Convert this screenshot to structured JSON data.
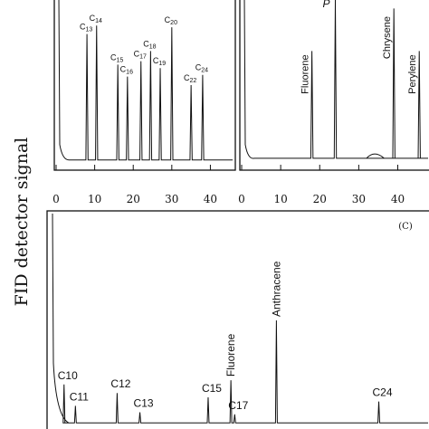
{
  "chart_data": [
    {
      "type": "line",
      "panel": "A",
      "ylabel": "FID detector signal",
      "xlim": [
        0,
        46
      ],
      "x_ticks": [
        0,
        10,
        20,
        30,
        40
      ],
      "x_tick_labels": [
        "0",
        "10",
        "20",
        "30",
        "40"
      ],
      "baseline": 0.06,
      "peaks": [
        {
          "label_main": "C",
          "label_sub": "13",
          "x": 8,
          "y": 0.8
        },
        {
          "label_main": "C",
          "label_sub": "14",
          "x": 10.5,
          "y": 0.85
        },
        {
          "label_main": "C",
          "label_sub": "15",
          "x": 16,
          "y": 0.62
        },
        {
          "label_main": "C",
          "label_sub": "16",
          "x": 18.5,
          "y": 0.55
        },
        {
          "label_main": "C",
          "label_sub": "17",
          "x": 22,
          "y": 0.64
        },
        {
          "label_main": "C",
          "label_sub": "18",
          "x": 24.5,
          "y": 0.7
        },
        {
          "label_main": "C",
          "label_sub": "19",
          "x": 27,
          "y": 0.6
        },
        {
          "label_main": "C",
          "label_sub": "20",
          "x": 30,
          "y": 0.84
        },
        {
          "label_main": "C",
          "label_sub": "22",
          "x": 35,
          "y": 0.5
        },
        {
          "label_main": "C",
          "label_sub": "24",
          "x": 38,
          "y": 0.56
        }
      ]
    },
    {
      "type": "line",
      "panel": "B",
      "xlim": [
        0,
        48
      ],
      "x_ticks": [
        0,
        10,
        20,
        30,
        40
      ],
      "x_tick_labels": [
        "0",
        "10",
        "20",
        "30",
        "40"
      ],
      "baseline": 0.07,
      "peaks": [
        {
          "label": "Fluorene",
          "x": 18,
          "y": 0.7
        },
        {
          "label": "P",
          "x": 24,
          "y": 1.0
        },
        {
          "label": "Chrysene",
          "x": 39,
          "y": 0.95
        },
        {
          "label": "Perylene",
          "x": 45.5,
          "y": 0.7
        }
      ]
    },
    {
      "type": "line",
      "panel": "C",
      "panel_label": "(C)",
      "peaks": [
        {
          "label": "C10",
          "x": 0.04,
          "y": 0.2
        },
        {
          "label": "C11",
          "x": 0.07,
          "y": 0.1
        },
        {
          "label": "C12",
          "x": 0.18,
          "y": 0.16
        },
        {
          "label": "C13",
          "x": 0.24,
          "y": 0.07
        },
        {
          "label": "C15",
          "x": 0.42,
          "y": 0.14
        },
        {
          "label": "Fluorene",
          "x": 0.48,
          "y": 0.22
        },
        {
          "label": "C17",
          "x": 0.49,
          "y": 0.06
        },
        {
          "label": "Anthracene",
          "x": 0.6,
          "y": 0.5
        },
        {
          "label": "C24",
          "x": 0.87,
          "y": 0.12
        }
      ]
    }
  ]
}
